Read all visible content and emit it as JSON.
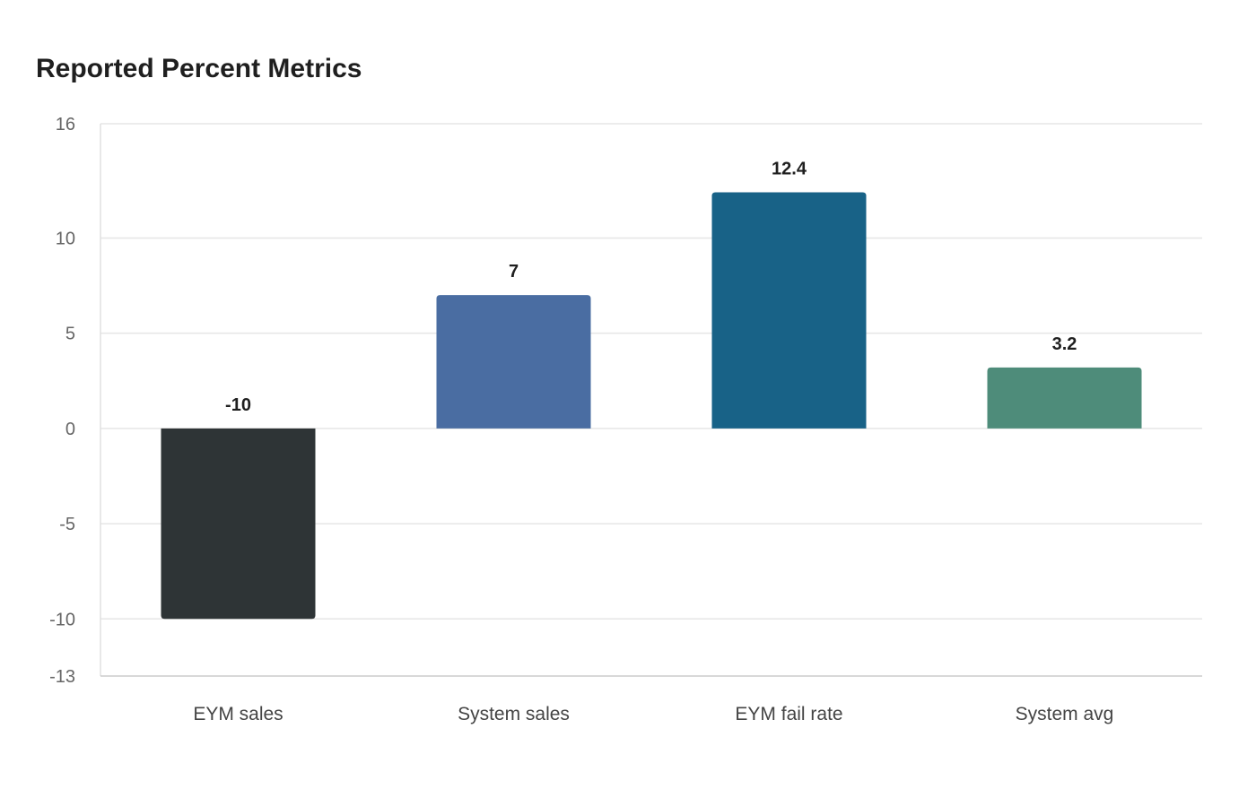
{
  "chart_data": {
    "type": "bar",
    "title": "Reported Percent Metrics",
    "xlabel": "",
    "ylabel": "",
    "categories": [
      "EYM sales",
      "System sales",
      "EYM fail rate",
      "System avg"
    ],
    "values": [
      -10,
      7,
      12.4,
      3.2
    ],
    "value_labels": [
      "-10",
      "7",
      "12.4",
      "3.2"
    ],
    "colors": [
      "#2e3436",
      "#4a6da2",
      "#186287",
      "#4e8c7a"
    ],
    "ylim": [
      -13,
      16
    ],
    "yticks": [
      -13,
      -10,
      -5,
      0,
      5,
      10,
      16
    ],
    "ytick_labels": [
      "-13",
      "-10",
      "-5",
      "0",
      "5",
      "10",
      "16"
    ],
    "grid": true,
    "legend": "none"
  }
}
